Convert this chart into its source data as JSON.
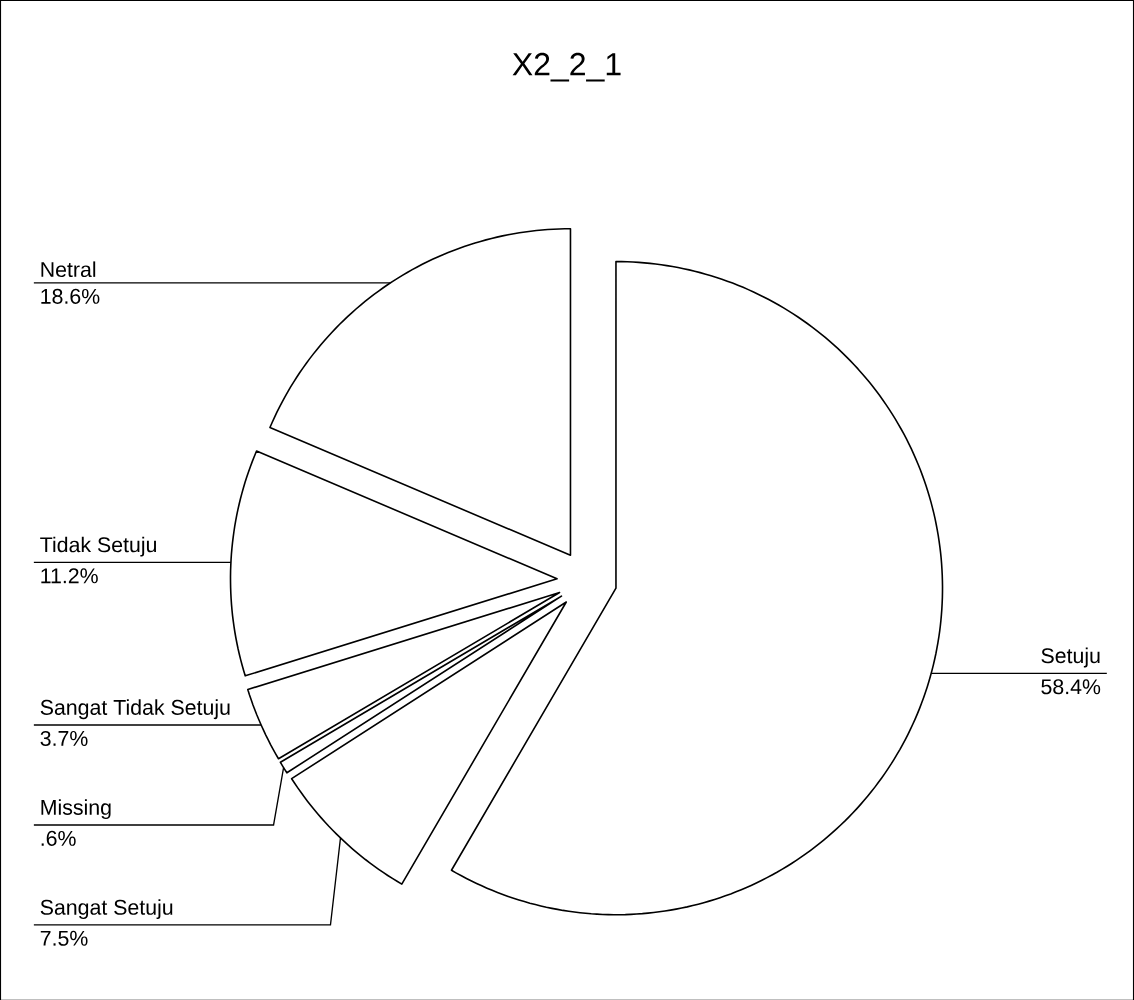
{
  "chart_data": {
    "type": "pie",
    "title": "X2_2_1",
    "categories": [
      "Setuju",
      "Sangat Setuju",
      "Missing",
      "Sangat Tidak Setuju",
      "Tidak Setuju",
      "Netral"
    ],
    "values": [
      58.4,
      7.5,
      0.6,
      3.7,
      11.2,
      18.6
    ],
    "value_labels": [
      "58.4%",
      "7.5%",
      ".6%",
      "3.7%",
      "11.2%",
      "18.6%"
    ],
    "colors": [
      "#ffffff",
      "#ffffff",
      "#ffffff",
      "#ffffff",
      "#ffffff",
      "#ffffff"
    ]
  }
}
